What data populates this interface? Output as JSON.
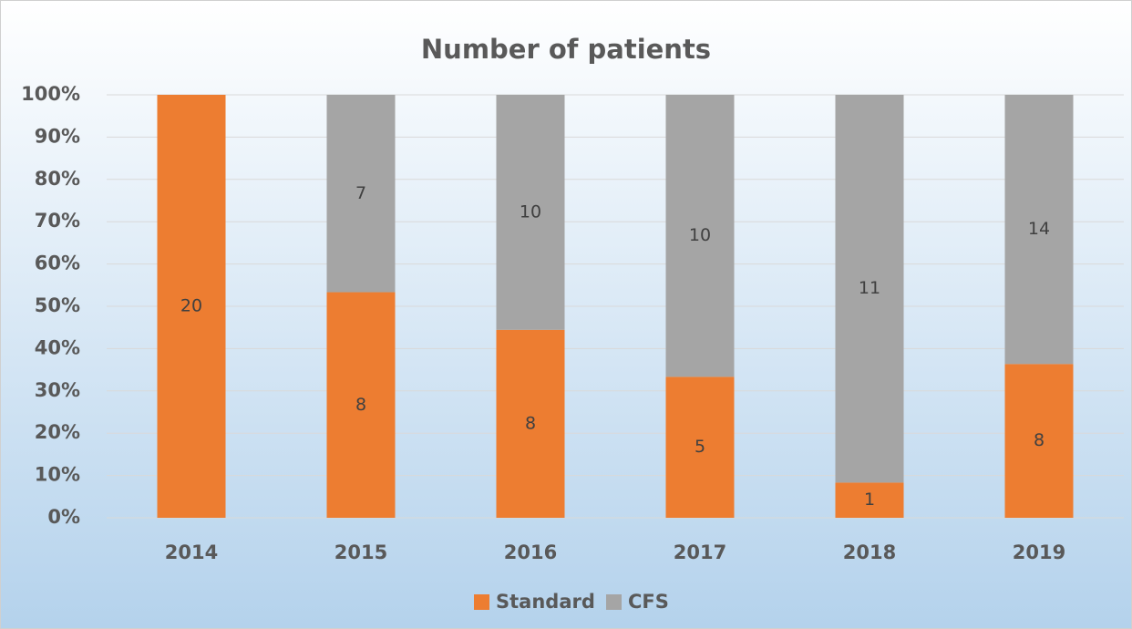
{
  "chart_data": {
    "type": "bar",
    "stacking": "percent",
    "title": "Number of patients",
    "categories": [
      "2014",
      "2015",
      "2016",
      "2017",
      "2018",
      "2019"
    ],
    "series": [
      {
        "name": "Standard",
        "color": "#ed7d31",
        "values": [
          20,
          8,
          8,
          5,
          1,
          8
        ]
      },
      {
        "name": "CFS",
        "color": "#a5a5a5",
        "values": [
          0,
          7,
          10,
          10,
          11,
          14
        ]
      }
    ],
    "ylim": [
      0,
      100
    ],
    "yticks": [
      {
        "value": 0,
        "label": "0%"
      },
      {
        "value": 10,
        "label": "10%"
      },
      {
        "value": 20,
        "label": "20%"
      },
      {
        "value": 30,
        "label": "30%"
      },
      {
        "value": 40,
        "label": "40%"
      },
      {
        "value": 50,
        "label": "50%"
      },
      {
        "value": 60,
        "label": "60%"
      },
      {
        "value": 70,
        "label": "70%"
      },
      {
        "value": 80,
        "label": "80%"
      },
      {
        "value": 90,
        "label": "90%"
      },
      {
        "value": 100,
        "label": "100%"
      }
    ],
    "grid": true,
    "legend": "bottom"
  }
}
